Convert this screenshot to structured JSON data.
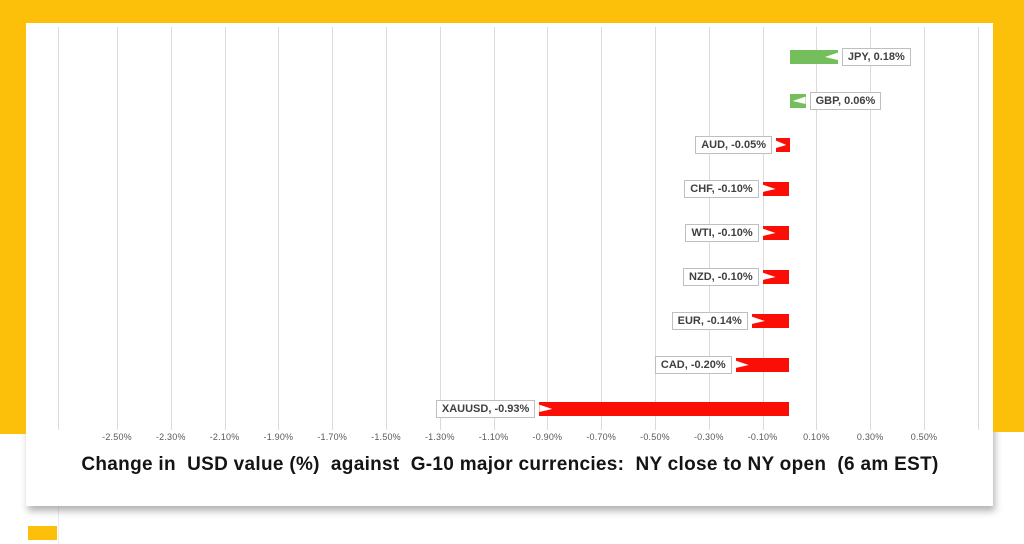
{
  "frame": {
    "accent_color": "#FDC00A"
  },
  "chart_data": {
    "type": "bar",
    "orientation": "horizontal",
    "title": "Change in  USD value (%)  against  G-10 major currencies:  NY close to NY open  (6 am EST)",
    "categories": [
      "JPY",
      "GBP",
      "AUD",
      "CHF",
      "WTI",
      "NZD",
      "EUR",
      "CAD",
      "XAUUSD"
    ],
    "values": [
      0.18,
      0.06,
      -0.05,
      -0.1,
      -0.1,
      -0.1,
      -0.14,
      -0.2,
      -0.93
    ],
    "point_labels": [
      "JPY, 0.18%",
      "GBP, 0.06%",
      "AUD, -0.05%",
      "CHF, -0.10%",
      "WTI, -0.10%",
      "NZD, -0.10%",
      "EUR, -0.14%",
      "CAD, -0.20%",
      "XAUUSD, -0.93%"
    ],
    "xlabel": "",
    "ylabel": "",
    "xlim": [
      -2.72,
      0.7
    ],
    "tick_values": [
      -2.5,
      -2.3,
      -2.1,
      -1.9,
      -1.7,
      -1.5,
      -1.3,
      -1.1,
      -0.9,
      -0.7,
      -0.5,
      -0.3,
      -0.1,
      0.1,
      0.3,
      0.5
    ],
    "tick_labels": [
      "-2.50%",
      "-2.30%",
      "-2.10%",
      "-1.90%",
      "-1.70%",
      "-1.50%",
      "-1.30%",
      "-1.10%",
      "-0.90%",
      "-0.70%",
      "-0.50%",
      "-0.30%",
      "-0.10%",
      "0.10%",
      "0.30%",
      "0.50%"
    ],
    "grid_on": true,
    "legend_position": "none",
    "positive_color": "#74BF5C",
    "negative_color": "#FB0E05",
    "gridline_color": "#DBDBDB",
    "tick_text_color": "#595959",
    "title_color": "#141414",
    "label_box": {
      "background": "#FFFFFF",
      "border_color": "#BFBFBF",
      "text_color": "#3F3F3F"
    }
  }
}
